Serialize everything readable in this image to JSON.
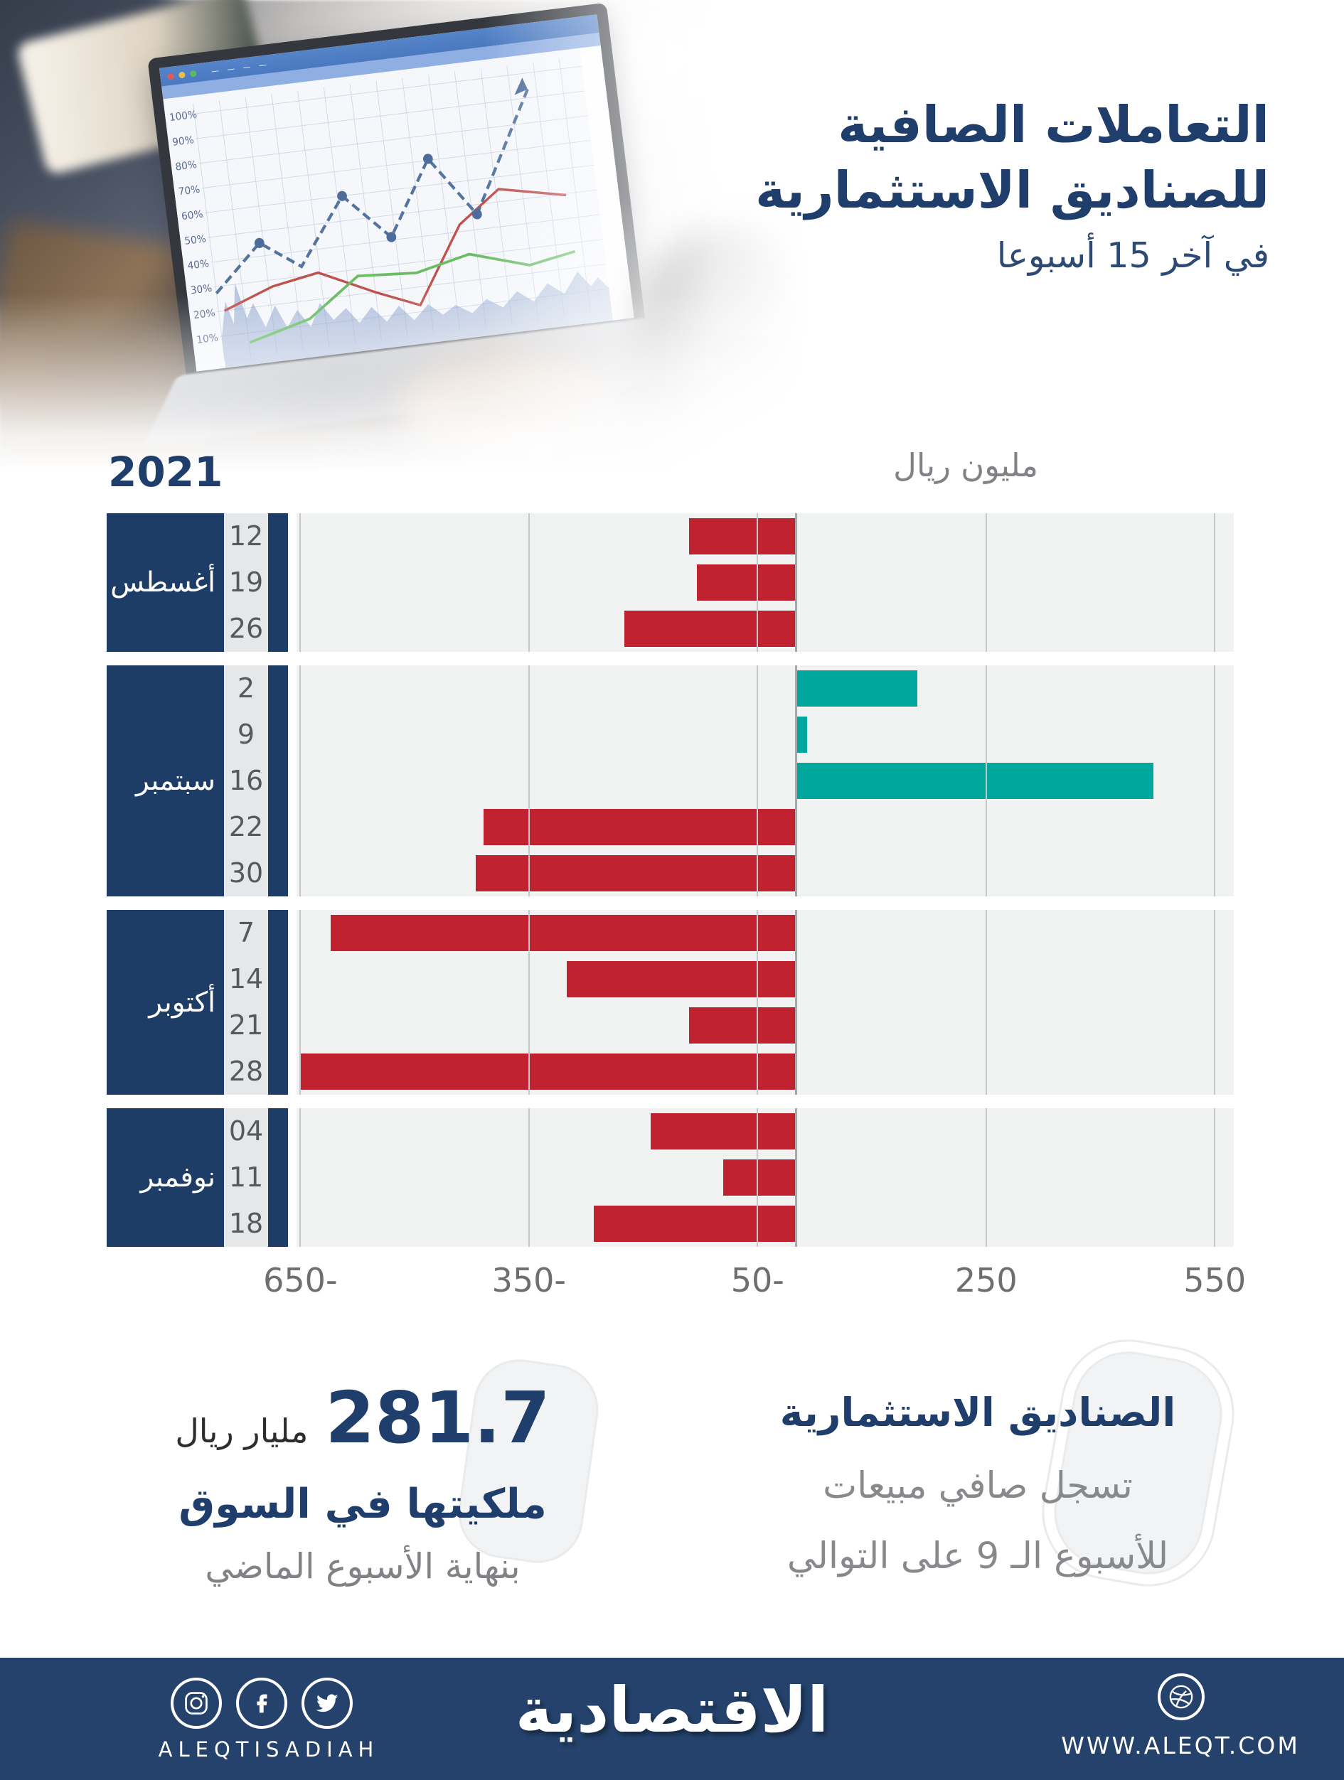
{
  "header": {
    "title_line1": "التعاملات الصافية",
    "title_line2": "للصناديق الاستثمارية",
    "subtitle": "في آخر 15 أسبوعا"
  },
  "chart_data": {
    "type": "bar",
    "orientation": "horizontal",
    "title": "التعاملات الصافية للصناديق الاستثمارية في آخر 15 أسبوعا",
    "year": "2021",
    "unit": "مليون ريال",
    "xlim": [
      -655,
      575
    ],
    "grid": true,
    "x_ticks": [
      {
        "label": "650-",
        "value": -650
      },
      {
        "label": "350-",
        "value": -350
      },
      {
        "label": "50-",
        "value": -50
      },
      {
        "label": "250",
        "value": 250
      },
      {
        "label": "550",
        "value": 550
      }
    ],
    "groups": [
      {
        "month": "أغسطس",
        "weeks": [
          {
            "day": "12",
            "value": -140
          },
          {
            "day": "19",
            "value": -130
          },
          {
            "day": "26",
            "value": -225
          }
        ]
      },
      {
        "month": "سبتمبر",
        "weeks": [
          {
            "day": "2",
            "value": 160
          },
          {
            "day": "9",
            "value": 15
          },
          {
            "day": "16",
            "value": 470
          },
          {
            "day": "22",
            "value": -410
          },
          {
            "day": "30",
            "value": -420
          }
        ]
      },
      {
        "month": "أكتوبر",
        "weeks": [
          {
            "day": "7",
            "value": -610
          },
          {
            "day": "14",
            "value": -300
          },
          {
            "day": "21",
            "value": -140
          },
          {
            "day": "28",
            "value": -650
          }
        ]
      },
      {
        "month": "نوفمبر",
        "weeks": [
          {
            "day": "04",
            "value": -190
          },
          {
            "day": "11",
            "value": -95
          },
          {
            "day": "18",
            "value": -265
          }
        ]
      }
    ],
    "colors": {
      "negative_bar": "#C1222F",
      "positive_bar": "#00A79C",
      "grid_line": "#C6C8CA",
      "zero_line": "#A6A8AB",
      "plot_bg": "#F1F2F2",
      "month_block": "#1E3D66"
    }
  },
  "photo": {
    "screen_y_labels": [
      "100%",
      "90%",
      "80%",
      "70%",
      "60%",
      "50%",
      "40%",
      "30%",
      "20%",
      "10%"
    ]
  },
  "stats": {
    "left": {
      "value": "281.7",
      "value_unit": "مليار ريال",
      "line2": "ملكيتها في السوق",
      "line3": "بنهاية الأسبوع الماضي"
    },
    "right": {
      "line1": "الصناديق الاستثمارية",
      "line2": "تسجل صافي مبيعات",
      "line3": "للأسبوع الـ 9 على التوالي"
    }
  },
  "footer": {
    "brand_latin": "ALEQTISADIAH",
    "brand_arabic": "الاقتصادية",
    "website": "WWW.ALEQT.COM",
    "bg_color": "#24426B",
    "accent_navy": "#1F3E6B"
  }
}
